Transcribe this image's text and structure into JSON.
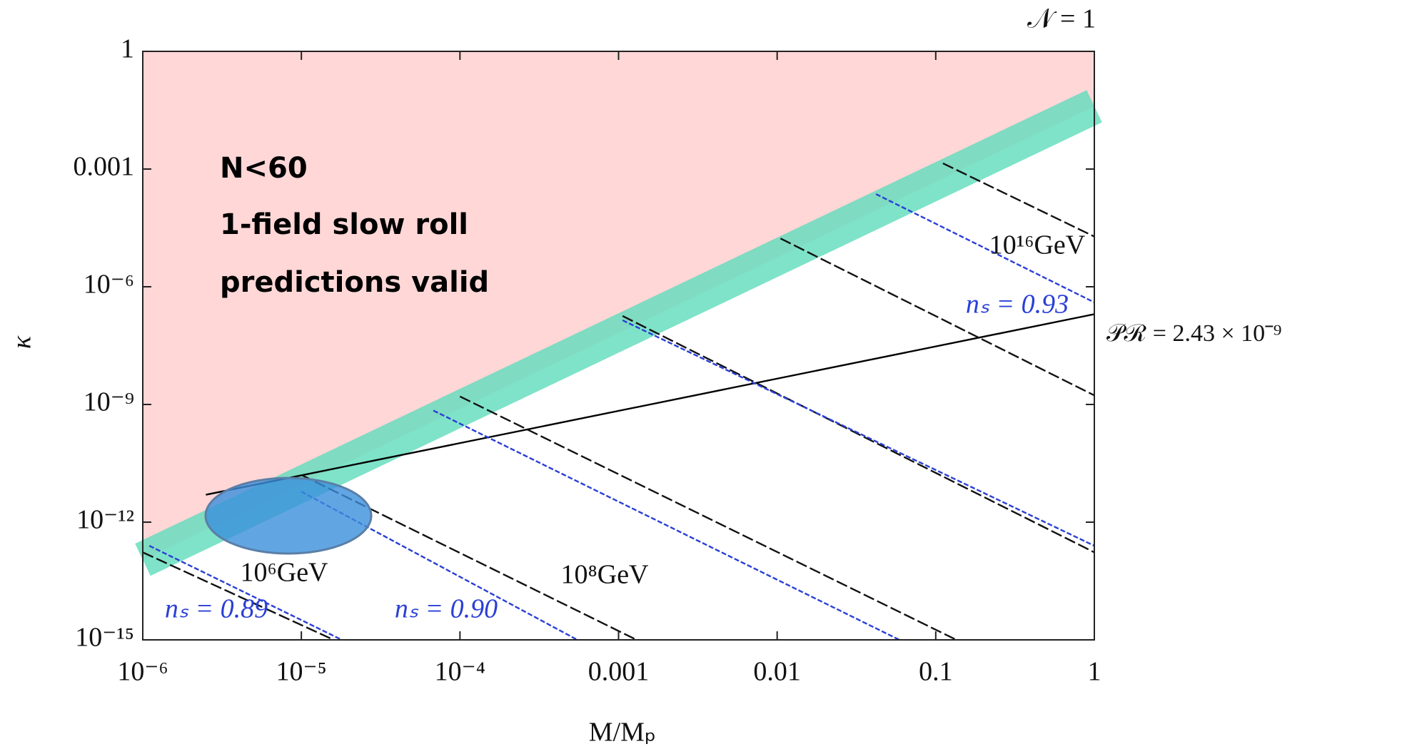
{
  "chart_data": {
    "type": "line",
    "xscale": "log",
    "yscale": "log",
    "xlim": [
      1e-06,
      1
    ],
    "ylim": [
      1e-15,
      1
    ],
    "xticks": [
      {
        "value": 1e-06,
        "label": "10⁻⁶"
      },
      {
        "value": 1e-05,
        "label": "10⁻⁵"
      },
      {
        "value": 0.0001,
        "label": "10⁻⁴"
      },
      0.001,
      0.01,
      0.1,
      1
    ],
    "yticks": [
      1,
      0.001,
      {
        "value": 1e-06,
        "label": "10⁻⁶"
      },
      {
        "value": 1e-09,
        "label": "10⁻⁹"
      },
      {
        "value": 1e-12,
        "label": "10⁻¹²"
      },
      {
        "value": 1e-15,
        "label": "10⁻¹⁵"
      }
    ],
    "xlabel": "M/Mₚ",
    "ylabel": "κ",
    "region_color": "#ffd7d7",
    "series": [
      {
        "kind": "band",
        "color": "#5fdcbb",
        "x": [
          1e-06,
          1
        ],
        "values": [
          1.1e-13,
          0.04
        ]
      },
      {
        "kind": "line",
        "dash": "none",
        "color": "#000000",
        "x": [
          2.5e-06,
          1
        ],
        "values": [
          5e-12,
          2e-07
        ]
      },
      {
        "kind": "line",
        "dash": "long",
        "color": "#111111",
        "x": [
          0.111,
          1
        ],
        "values": [
          0.0014,
          1.9e-05
        ]
      },
      {
        "kind": "line",
        "dash": "long",
        "color": "#111111",
        "x": [
          0.0105,
          1
        ],
        "values": [
          1.7e-05,
          1.7e-09
        ]
      },
      {
        "kind": "line",
        "dash": "long",
        "color": "#111111",
        "x": [
          0.00106,
          1
        ],
        "values": [
          1.8e-07,
          1.7e-13
        ]
      },
      {
        "kind": "line",
        "dash": "long",
        "color": "#111111",
        "x": [
          0.0001,
          0.135
        ],
        "values": [
          1.6e-09,
          1e-15
        ]
      },
      {
        "kind": "line",
        "dash": "long",
        "color": "#111111",
        "x": [
          1e-05,
          0.0013
        ],
        "values": [
          1.6e-11,
          1e-15
        ]
      },
      {
        "kind": "line",
        "dash": "long",
        "color": "#111111",
        "x": [
          1e-06,
          1.6e-05
        ],
        "values": [
          1.7e-13,
          1e-15
        ]
      },
      {
        "kind": "line",
        "dash": "short",
        "color": "#2a3fd6",
        "x": [
          0.042,
          1
        ],
        "values": [
          0.00023,
          4e-07
        ]
      },
      {
        "kind": "line",
        "dash": "short",
        "color": "#2a3fd6",
        "x": [
          0.00106,
          1
        ],
        "values": [
          1.4e-07,
          2.5e-13
        ]
      },
      {
        "kind": "line",
        "dash": "short",
        "color": "#2a3fd6",
        "x": [
          6.8e-05,
          0.059
        ],
        "values": [
          7e-10,
          1e-15
        ]
      },
      {
        "kind": "line",
        "dash": "short",
        "color": "#2a3fd6",
        "x": [
          1e-05,
          0.00055
        ],
        "values": [
          6e-12,
          1e-15
        ]
      },
      {
        "kind": "line",
        "dash": "short",
        "color": "#2a3fd6",
        "x": [
          1.1e-06,
          1.8e-05
        ],
        "values": [
          2.5e-13,
          1e-15
        ]
      }
    ],
    "annotations": [
      "𝒩 = 1",
      "N<60",
      "1-field slow roll",
      "predictions valid",
      "10¹⁶GeV",
      "nₛ = 0.93",
      "𝒫ℛ = 2.43 × 10⁻⁹",
      "10⁶GeV",
      "10⁸GeV",
      "nₛ = 0.89",
      "nₛ = 0.90"
    ]
  }
}
